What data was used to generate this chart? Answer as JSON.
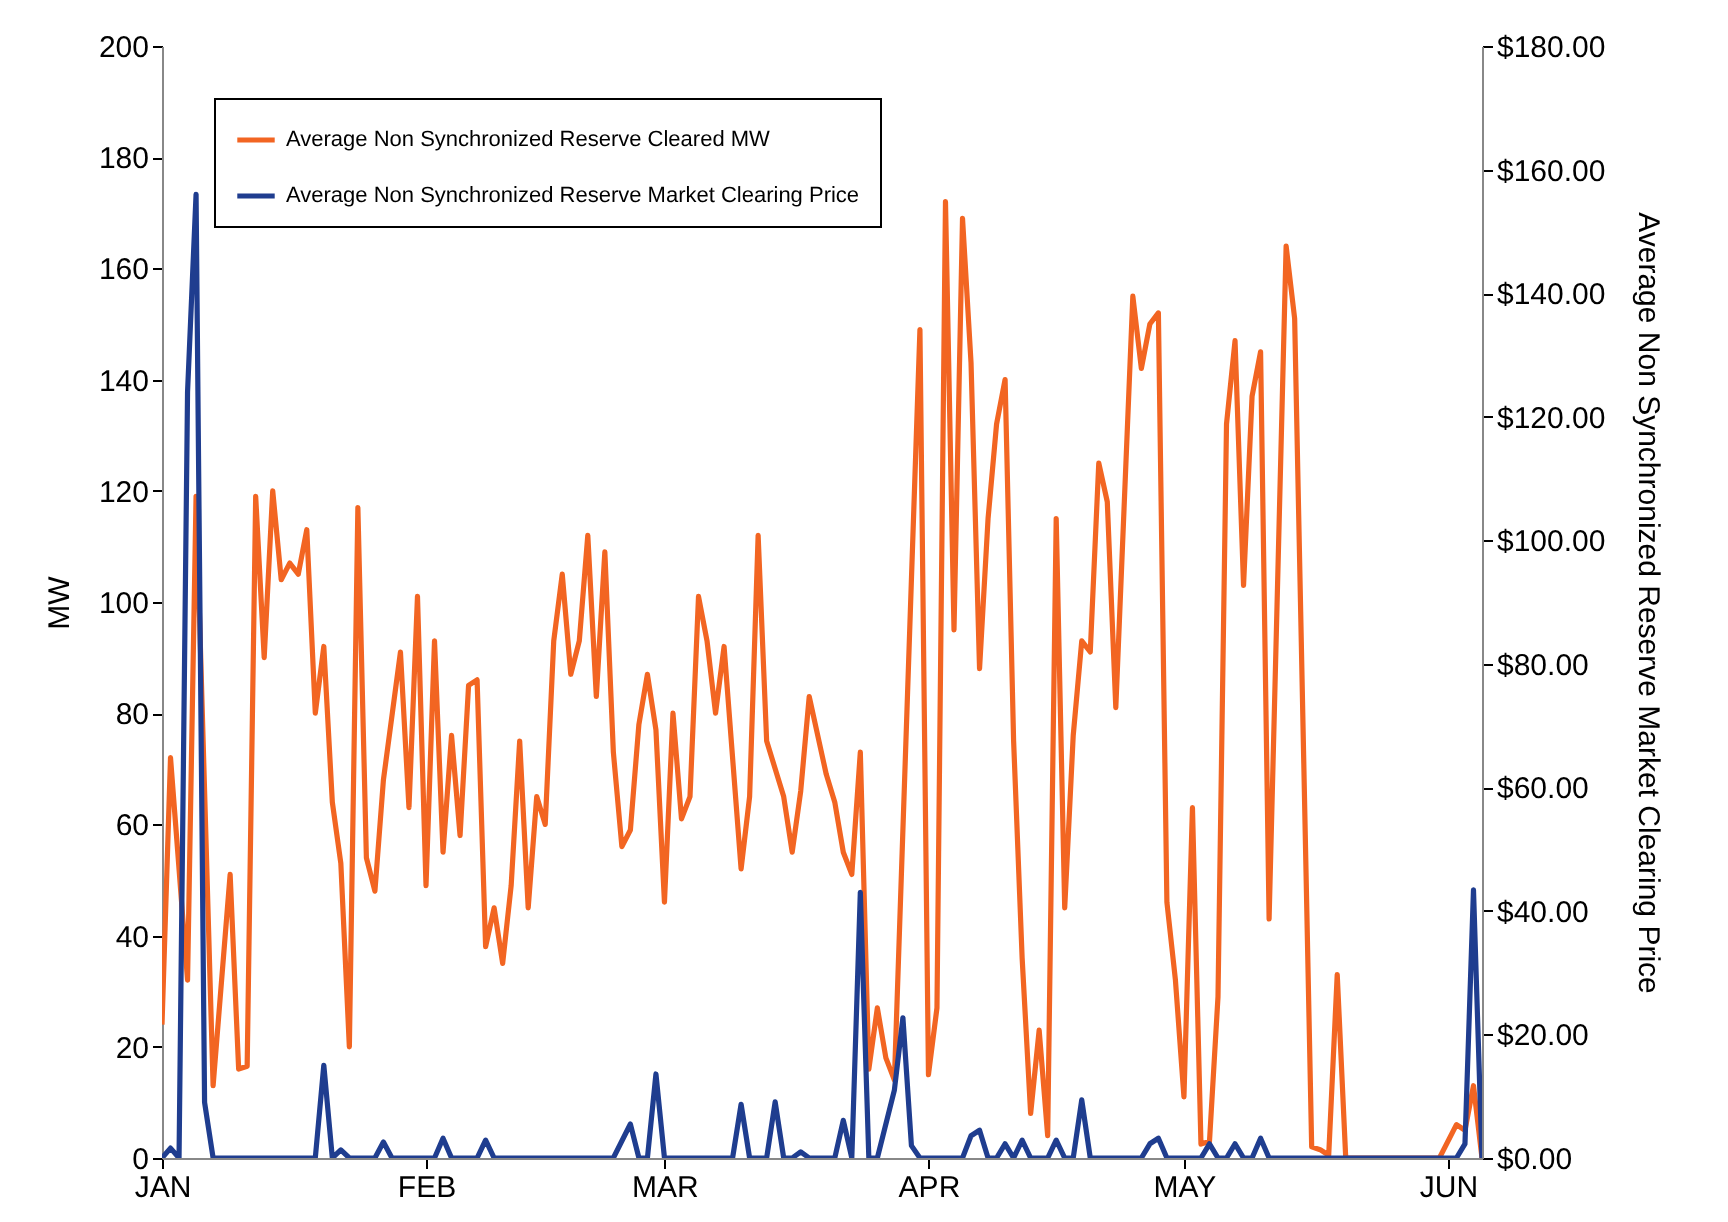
{
  "chart_data": {
    "type": "line",
    "ylabel": "MW",
    "y2label": "Average Non Synchronized Reserve Market Clearing Price",
    "legend": "top left",
    "marker": "none",
    "line_style": "solid",
    "xlim": [
      "--01-01",
      "--06-05"
    ],
    "xticks": [
      {
        "value": "--01-01",
        "label": "JAN"
      },
      {
        "value": "--02-01",
        "label": "FEB"
      },
      {
        "value": "--03-01",
        "label": "MAR"
      },
      {
        "value": "--04-01",
        "label": "APR"
      },
      {
        "value": "--05-01",
        "label": "MAY"
      },
      {
        "value": "--06-01",
        "label": "JUN"
      }
    ],
    "ylim": [
      0,
      200
    ],
    "yticks": [
      0,
      20,
      40,
      60,
      80,
      100,
      120,
      140,
      160,
      180,
      200
    ],
    "y2lim": [
      0,
      180
    ],
    "y2ticks": [
      {
        "value": 0,
        "label": "$0.00"
      },
      {
        "value": 20,
        "label": "$20.00"
      },
      {
        "value": 40,
        "label": "$40.00"
      },
      {
        "value": 60,
        "label": "$60.00"
      },
      {
        "value": 80,
        "label": "$80.00"
      },
      {
        "value": 100,
        "label": "$100.00"
      },
      {
        "value": 120,
        "label": "$120.00"
      },
      {
        "value": 140,
        "label": "$140.00"
      },
      {
        "value": 160,
        "label": "$160.00"
      },
      {
        "value": 180,
        "label": "$180.00"
      }
    ],
    "series": [
      {
        "name": "Average Non Synchronized Reserve Cleared MW",
        "color": "#f26522",
        "type": "line",
        "x": [
          "--01-01",
          "--01-02",
          "--01-04",
          "--01-05",
          "--01-07",
          "--01-09",
          "--01-10",
          "--01-11",
          "--01-12",
          "--01-13",
          "--01-14",
          "--01-15",
          "--01-16",
          "--01-17",
          "--01-18",
          "--01-19",
          "--01-20",
          "--01-21",
          "--01-22",
          "--01-23",
          "--01-24",
          "--01-25",
          "--01-26",
          "--01-27",
          "--01-29",
          "--01-30",
          "--01-31",
          "--02-01",
          "--02-02",
          "--02-03",
          "--02-04",
          "--02-05",
          "--02-06",
          "--02-07",
          "--02-08",
          "--02-09",
          "--02-10",
          "--02-11",
          "--02-12",
          "--02-13",
          "--02-14",
          "--02-15",
          "--02-16",
          "--02-17",
          "--02-18",
          "--02-19",
          "--02-20",
          "--02-21",
          "--02-22",
          "--02-23",
          "--02-24",
          "--02-25",
          "--02-26",
          "--02-27",
          "--02-28",
          "--03-01",
          "--03-02",
          "--03-03",
          "--03-04",
          "--03-05",
          "--03-06",
          "--03-07",
          "--03-08",
          "--03-09",
          "--03-10",
          "--03-11",
          "--03-12",
          "--03-13",
          "--03-14",
          "--03-15",
          "--03-16",
          "--03-17",
          "--03-18",
          "--03-19",
          "--03-20",
          "--03-21",
          "--03-22",
          "--03-23",
          "--03-24",
          "--03-25",
          "--03-26",
          "--03-27",
          "--03-28",
          "--03-31",
          "--04-01",
          "--04-02",
          "--04-03",
          "--04-04",
          "--04-05",
          "--04-06",
          "--04-07",
          "--04-08",
          "--04-09",
          "--04-10",
          "--04-11",
          "--04-12",
          "--04-13",
          "--04-14",
          "--04-15",
          "--04-16",
          "--04-17",
          "--04-18",
          "--04-19",
          "--04-20",
          "--04-21",
          "--04-22",
          "--04-23",
          "--04-25",
          "--04-26",
          "--04-27",
          "--04-28",
          "--04-29",
          "--04-30",
          "--05-01",
          "--05-02",
          "--05-03",
          "--05-04",
          "--05-05",
          "--05-06",
          "--05-07",
          "--05-08",
          "--05-09",
          "--05-10",
          "--05-11",
          "--05-13",
          "--05-14",
          "--05-16",
          "--05-17",
          "--05-18",
          "--05-19",
          "--05-20",
          "--05-31",
          "--06-02",
          "--06-03",
          "--06-04",
          "--06-05"
        ],
        "values": [
          24,
          72,
          32,
          119,
          13,
          51,
          16,
          16.5,
          119,
          90,
          120,
          104,
          107,
          105,
          113,
          80,
          92,
          64,
          53,
          20,
          117,
          54,
          48,
          68,
          91,
          63,
          101,
          49,
          93,
          55,
          76,
          58,
          85,
          86,
          38,
          45,
          35,
          49,
          75,
          45,
          65,
          60,
          93,
          105,
          87,
          93,
          112,
          83,
          109,
          73,
          56,
          59,
          78,
          87,
          77,
          46,
          80,
          61,
          65,
          101,
          93,
          80,
          92,
          72,
          52,
          65,
          112,
          75,
          70,
          65,
          55,
          66,
          83,
          76,
          69,
          64,
          55,
          51,
          73,
          16,
          27,
          18,
          14,
          149,
          15,
          27,
          172,
          95,
          169,
          143,
          88,
          115,
          132,
          140,
          75,
          36,
          8,
          23,
          4,
          115,
          45,
          76,
          93,
          91,
          125,
          118,
          81,
          155,
          142,
          150,
          152,
          46,
          32,
          11,
          63,
          2.5,
          3,
          29,
          132,
          147,
          103,
          137,
          145,
          43,
          164,
          151,
          2,
          1.5,
          0.5,
          33,
          0,
          0,
          6,
          5,
          13,
          0
        ]
      },
      {
        "name": "Average Non Synchronized Reserve Market Clearing Price",
        "color": "#1f3d8f",
        "type": "line",
        "axis": "y2",
        "x": [
          "--01-01",
          "--01-02",
          "--01-03",
          "--01-04",
          "--01-05",
          "--01-06",
          "--01-07",
          "--01-19",
          "--01-20",
          "--01-21",
          "--01-22",
          "--01-23",
          "--01-26",
          "--01-27",
          "--01-28",
          "--02-02",
          "--02-03",
          "--02-04",
          "--02-07",
          "--02-08",
          "--02-09",
          "--02-23",
          "--02-25",
          "--02-26",
          "--02-27",
          "--02-28",
          "--03-01",
          "--03-09",
          "--03-10",
          "--03-11",
          "--03-13",
          "--03-14",
          "--03-15",
          "--03-16",
          "--03-17",
          "--03-18",
          "--03-21",
          "--03-22",
          "--03-23",
          "--03-24",
          "--03-25",
          "--03-26",
          "--03-28",
          "--03-29",
          "--03-30",
          "--03-31",
          "--04-05",
          "--04-06",
          "--04-07",
          "--04-08",
          "--04-09",
          "--04-10",
          "--04-11",
          "--04-12",
          "--04-13",
          "--04-15",
          "--04-16",
          "--04-17",
          "--04-18",
          "--04-19",
          "--04-20",
          "--04-26",
          "--04-27",
          "--04-28",
          "--04-29",
          "--05-03",
          "--05-04",
          "--05-05",
          "--05-06",
          "--05-07",
          "--05-08",
          "--05-09",
          "--05-10",
          "--05-11",
          "--06-02",
          "--06-03",
          "--06-04",
          "--06-05"
        ],
        "values": [
          0,
          1.6,
          0,
          124,
          156,
          9,
          0,
          0,
          15,
          0,
          1.3,
          0,
          0,
          2.6,
          0,
          0,
          3.2,
          0,
          0,
          2.9,
          0,
          0,
          5.5,
          0,
          0,
          13.6,
          0,
          0,
          8.7,
          0,
          0,
          9.1,
          0,
          0,
          1,
          0,
          0,
          6.1,
          0,
          43,
          0,
          0,
          11,
          22.7,
          2,
          0,
          0,
          3.6,
          4.5,
          0,
          0,
          2.3,
          0,
          2.9,
          0,
          0,
          2.9,
          0,
          0,
          9.4,
          0,
          0,
          2.3,
          3.2,
          0,
          0,
          2.3,
          0,
          0,
          2.3,
          0,
          0,
          3.2,
          0,
          0,
          2.3,
          43.4,
          0
        ]
      }
    ]
  }
}
